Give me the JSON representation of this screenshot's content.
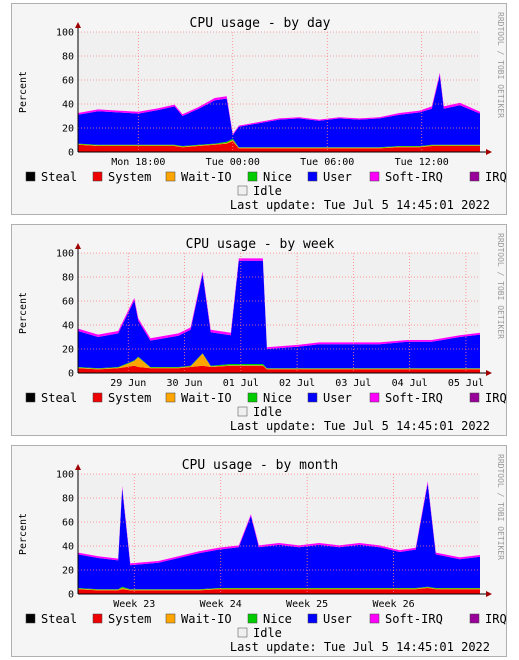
{
  "watermark": "RRDTOOL / TOBI OETIKER",
  "ylabel": "Percent",
  "last_update": "Last update: Tue Jul  5 14:45:01 2022",
  "legend": [
    {
      "name": "Steal",
      "color": "#000000"
    },
    {
      "name": "System",
      "color": "#ee0000"
    },
    {
      "name": "Wait-IO",
      "color": "#ffa500"
    },
    {
      "name": "Nice",
      "color": "#00cc00"
    },
    {
      "name": "User",
      "color": "#0000ff"
    },
    {
      "name": "Soft-IRQ",
      "color": "#ff00ff"
    },
    {
      "name": "IRQ",
      "color": "#990099"
    },
    {
      "name": "Idle",
      "color": "#f0f0f0"
    }
  ],
  "chart_data": [
    {
      "type": "area",
      "title": "CPU usage - by day",
      "ylabel": "Percent",
      "ylim": [
        0,
        100
      ],
      "yticks": [
        0,
        20,
        40,
        60,
        80,
        100
      ],
      "xticks": [
        {
          "label": "Mon 18:00",
          "pos": 0.15
        },
        {
          "label": "Tue 00:00",
          "pos": 0.385
        },
        {
          "label": "Tue 06:00",
          "pos": 0.62
        },
        {
          "label": "Tue 12:00",
          "pos": 0.855
        }
      ],
      "series_order": [
        "system",
        "waitio",
        "nice",
        "user",
        "softirq"
      ],
      "points": [
        [
          0.0,
          6,
          0.5,
          0.5,
          24,
          1.5
        ],
        [
          0.05,
          5,
          0.5,
          0.5,
          28,
          1.5
        ],
        [
          0.1,
          5,
          0.5,
          0.5,
          27,
          1.5
        ],
        [
          0.15,
          5,
          0.5,
          0.5,
          26,
          1.5
        ],
        [
          0.2,
          5,
          0.5,
          0.5,
          29,
          1.5
        ],
        [
          0.24,
          5,
          0.5,
          0.5,
          32,
          1.5
        ],
        [
          0.26,
          4,
          0.5,
          0.5,
          25,
          1.5
        ],
        [
          0.3,
          5,
          0.5,
          0.5,
          30,
          1.5
        ],
        [
          0.34,
          6,
          0.5,
          0.5,
          36,
          2
        ],
        [
          0.37,
          7,
          0.5,
          1,
          36,
          2
        ],
        [
          0.385,
          9,
          1,
          1,
          3,
          1
        ],
        [
          0.4,
          3,
          0.5,
          0.5,
          17,
          1
        ],
        [
          0.45,
          3,
          0.5,
          0.5,
          20,
          1
        ],
        [
          0.5,
          3,
          0.5,
          0.5,
          23,
          1
        ],
        [
          0.55,
          3,
          0.5,
          0.5,
          24,
          1
        ],
        [
          0.6,
          3,
          0.5,
          0.5,
          22,
          1
        ],
        [
          0.65,
          3,
          0.5,
          0.5,
          24,
          1
        ],
        [
          0.7,
          3,
          0.5,
          0.5,
          23,
          1
        ],
        [
          0.75,
          3,
          0.5,
          0.5,
          24,
          1
        ],
        [
          0.8,
          4,
          0.5,
          0.5,
          26,
          1.5
        ],
        [
          0.85,
          4,
          0.5,
          0.5,
          28,
          1.5
        ],
        [
          0.88,
          5,
          0.5,
          0.5,
          30,
          2
        ],
        [
          0.9,
          5,
          0.5,
          0.5,
          58,
          2
        ],
        [
          0.91,
          5,
          0.5,
          0.5,
          30,
          2
        ],
        [
          0.95,
          5,
          0.5,
          0.5,
          33,
          2
        ],
        [
          1.0,
          5,
          0.5,
          0.5,
          26,
          1.5
        ]
      ]
    },
    {
      "type": "area",
      "title": "CPU usage - by week",
      "ylabel": "Percent",
      "ylim": [
        0,
        100
      ],
      "yticks": [
        0,
        20,
        40,
        60,
        80,
        100
      ],
      "xticks": [
        {
          "label": "29 Jun",
          "pos": 0.125
        },
        {
          "label": "30 Jun",
          "pos": 0.265
        },
        {
          "label": "01 Jul",
          "pos": 0.405
        },
        {
          "label": "02 Jul",
          "pos": 0.545
        },
        {
          "label": "03 Jul",
          "pos": 0.685
        },
        {
          "label": "04 Jul",
          "pos": 0.825
        },
        {
          "label": "05 Jul",
          "pos": 0.965
        }
      ],
      "series_order": [
        "system",
        "waitio",
        "nice",
        "user",
        "softirq"
      ],
      "points": [
        [
          0.0,
          4,
          0.5,
          0.5,
          30,
          2
        ],
        [
          0.05,
          3,
          0.5,
          0.5,
          26,
          2
        ],
        [
          0.1,
          4,
          0.5,
          0.5,
          28,
          2
        ],
        [
          0.14,
          6,
          4,
          0.5,
          50,
          2
        ],
        [
          0.15,
          5,
          8,
          0.5,
          30,
          2
        ],
        [
          0.18,
          4,
          0.5,
          0.5,
          22,
          2
        ],
        [
          0.25,
          4,
          0.5,
          0.5,
          26,
          2
        ],
        [
          0.28,
          5,
          0.5,
          0.5,
          30,
          2
        ],
        [
          0.31,
          6,
          10,
          0.5,
          66,
          2
        ],
        [
          0.33,
          5,
          0.5,
          0.5,
          28,
          2
        ],
        [
          0.38,
          6,
          0.5,
          1,
          24,
          2
        ],
        [
          0.4,
          6,
          0.5,
          1,
          86,
          2
        ],
        [
          0.46,
          6,
          0.5,
          1,
          86,
          2
        ],
        [
          0.47,
          3,
          0.5,
          0.5,
          16,
          1.5
        ],
        [
          0.55,
          3,
          0.5,
          0.5,
          18,
          1.5
        ],
        [
          0.6,
          3,
          0.5,
          0.5,
          20,
          1.5
        ],
        [
          0.68,
          3,
          0.5,
          0.5,
          20,
          1.5
        ],
        [
          0.75,
          3,
          0.5,
          0.5,
          20,
          1.5
        ],
        [
          0.82,
          3,
          0.5,
          0.5,
          22,
          1.5
        ],
        [
          0.88,
          3,
          0.5,
          0.5,
          22,
          1.5
        ],
        [
          0.95,
          3,
          0.5,
          0.5,
          26,
          1.5
        ],
        [
          1.0,
          3,
          0.5,
          0.5,
          28,
          1.5
        ]
      ]
    },
    {
      "type": "area",
      "title": "CPU usage - by month",
      "ylabel": "Percent",
      "ylim": [
        0,
        100
      ],
      "yticks": [
        0,
        20,
        40,
        60,
        80,
        100
      ],
      "xticks": [
        {
          "label": "Week 23",
          "pos": 0.14
        },
        {
          "label": "Week 24",
          "pos": 0.355
        },
        {
          "label": "Week 25",
          "pos": 0.57
        },
        {
          "label": "Week 26",
          "pos": 0.785
        }
      ],
      "series_order": [
        "system",
        "waitio",
        "nice",
        "user",
        "softirq"
      ],
      "points": [
        [
          0.0,
          4,
          0.5,
          0.5,
          28,
          1.5
        ],
        [
          0.05,
          3,
          0.5,
          0.5,
          26,
          1.5
        ],
        [
          0.1,
          3,
          0.5,
          0.5,
          24,
          1.5
        ],
        [
          0.11,
          4,
          1,
          1,
          82,
          2
        ],
        [
          0.13,
          3,
          0.5,
          0.5,
          20,
          1.5
        ],
        [
          0.2,
          3,
          0.5,
          0.5,
          22,
          1.5
        ],
        [
          0.25,
          3,
          0.5,
          0.5,
          26,
          1.5
        ],
        [
          0.3,
          3,
          0.5,
          0.5,
          30,
          1.5
        ],
        [
          0.35,
          4,
          0.5,
          0.5,
          32,
          1.5
        ],
        [
          0.4,
          4,
          0.5,
          0.5,
          34,
          1.5
        ],
        [
          0.43,
          4,
          0.5,
          0.5,
          60,
          1.5
        ],
        [
          0.45,
          4,
          0.5,
          0.5,
          34,
          1.5
        ],
        [
          0.5,
          4,
          0.5,
          0.5,
          36,
          1.5
        ],
        [
          0.55,
          4,
          0.5,
          0.5,
          34,
          1.5
        ],
        [
          0.6,
          4,
          0.5,
          0.5,
          36,
          1.5
        ],
        [
          0.65,
          4,
          0.5,
          0.5,
          34,
          1.5
        ],
        [
          0.7,
          4,
          0.5,
          0.5,
          36,
          1.5
        ],
        [
          0.75,
          4,
          0.5,
          0.5,
          34,
          1.5
        ],
        [
          0.8,
          4,
          0.5,
          0.5,
          30,
          1.5
        ],
        [
          0.84,
          4,
          0.5,
          0.5,
          32,
          1.5
        ],
        [
          0.87,
          5,
          0.5,
          0.5,
          86,
          2
        ],
        [
          0.89,
          4,
          0.5,
          0.5,
          28,
          1.5
        ],
        [
          0.95,
          4,
          0.5,
          0.5,
          24,
          1.5
        ],
        [
          1.0,
          4,
          0.5,
          0.5,
          26,
          1.5
        ]
      ]
    }
  ]
}
